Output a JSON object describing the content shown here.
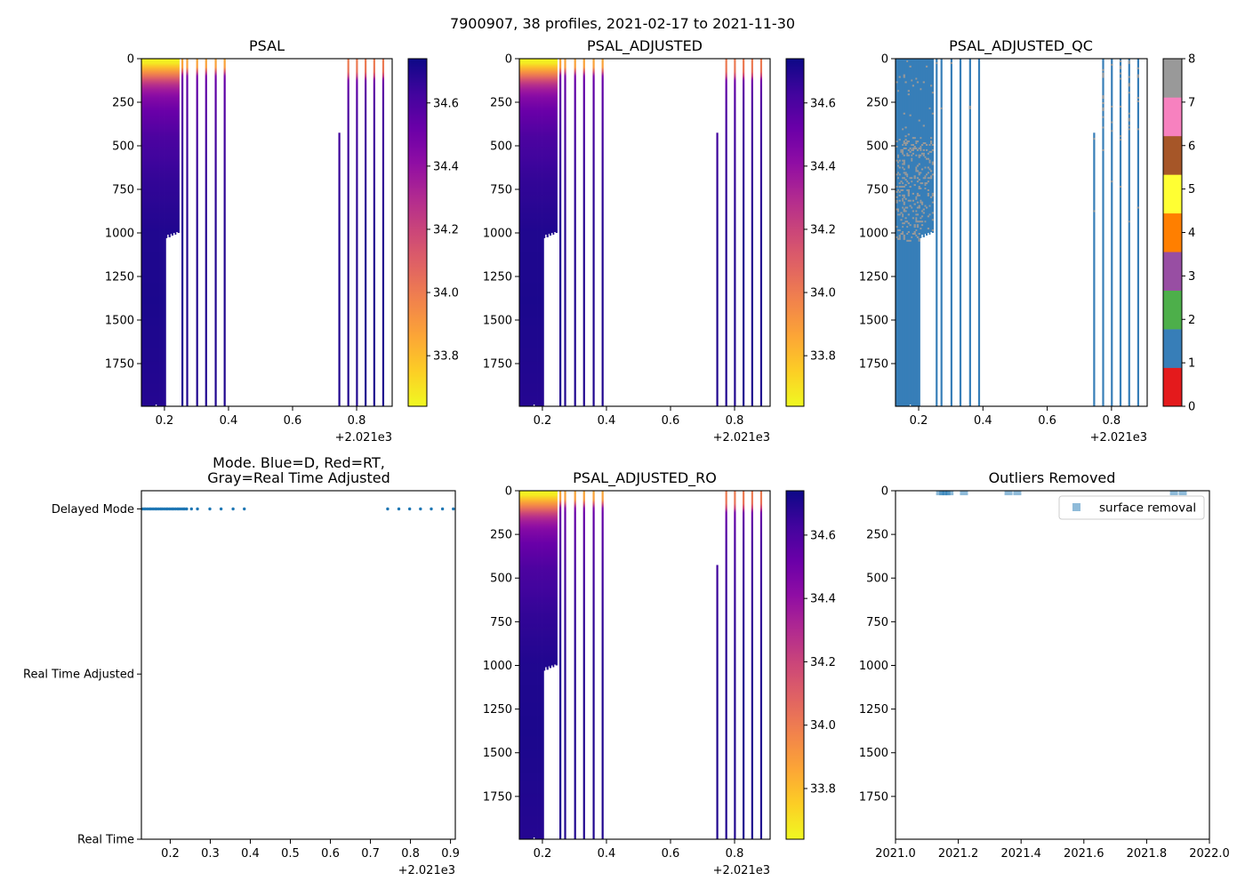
{
  "figure": {
    "suptitle": "7900907, 38 profiles, 2021-02-17 to 2021-11-30"
  },
  "profiles": {
    "float_id": "7900907",
    "count": 38,
    "time_offset": 2021,
    "pressure_levels": [
      0,
      30,
      60,
      90,
      120,
      160,
      220,
      300,
      450,
      700,
      1000,
      1400,
      2000
    ],
    "groups": {
      "early": {
        "psal": [
          33.65,
          33.68,
          33.85,
          33.98,
          34.15,
          34.32,
          34.44,
          34.52,
          34.6,
          34.66,
          34.7,
          34.71,
          34.69
        ]
      },
      "middle": {
        "psal": [
          33.86,
          33.87,
          33.9,
          34.42,
          34.52,
          34.54,
          34.56,
          34.58,
          34.62,
          34.66,
          34.69,
          34.7,
          34.7
        ]
      },
      "late": {
        "psal": [
          34.0,
          34.0,
          34.02,
          34.08,
          34.48,
          34.54,
          34.57,
          34.6,
          34.63,
          34.66,
          34.69,
          34.7,
          34.7
        ]
      }
    },
    "qc": {
      "default_flag": 1,
      "sparse_flag": 8,
      "sparse_regions": [
        {
          "group": "early",
          "pmin": 0,
          "pmax": 450,
          "fraction": 0.03
        },
        {
          "group": "early",
          "pmin": 450,
          "pmax": 1050,
          "fraction": 0.2
        },
        {
          "group": "middle",
          "pmin": 0,
          "pmax": 300,
          "fraction": 0.04
        },
        {
          "group": "late",
          "pmin": 0,
          "pmax": 470,
          "fraction": 0.15
        },
        {
          "group": "late",
          "pmin": 470,
          "pmax": 1000,
          "fraction": 0.02
        }
      ]
    },
    "list": [
      {
        "t": 0.129,
        "g": "early",
        "pmin": 0,
        "pmax": 1995,
        "mode": "D"
      },
      {
        "t": 0.134,
        "g": "early",
        "pmin": 0,
        "pmax": 1995,
        "mode": "D"
      },
      {
        "t": 0.138,
        "g": "early",
        "pmin": 0,
        "pmax": 1995,
        "mode": "D"
      },
      {
        "t": 0.143,
        "g": "early",
        "pmin": 0,
        "pmax": 1995,
        "mode": "D"
      },
      {
        "t": 0.148,
        "g": "early",
        "pmin": 0,
        "pmax": 1995,
        "mode": "D"
      },
      {
        "t": 0.152,
        "g": "early",
        "pmin": 0,
        "pmax": 1995,
        "mode": "D"
      },
      {
        "t": 0.157,
        "g": "early",
        "pmin": 0,
        "pmax": 1995,
        "mode": "D"
      },
      {
        "t": 0.162,
        "g": "early",
        "pmin": 0,
        "pmax": 1995,
        "mode": "D"
      },
      {
        "t": 0.166,
        "g": "early",
        "pmin": 0,
        "pmax": 1995,
        "mode": "D"
      },
      {
        "t": 0.171,
        "g": "early",
        "pmin": 0,
        "pmax": 1985,
        "mode": "D"
      },
      {
        "t": 0.176,
        "g": "early",
        "pmin": 0,
        "pmax": 1995,
        "mode": "D"
      },
      {
        "t": 0.18,
        "g": "early",
        "pmin": 0,
        "pmax": 1995,
        "mode": "D"
      },
      {
        "t": 0.185,
        "g": "early",
        "pmin": 0,
        "pmax": 1995,
        "mode": "D"
      },
      {
        "t": 0.19,
        "g": "early",
        "pmin": 0,
        "pmax": 1995,
        "mode": "D"
      },
      {
        "t": 0.194,
        "g": "early",
        "pmin": 0,
        "pmax": 1995,
        "mode": "D"
      },
      {
        "t": 0.199,
        "g": "early",
        "pmin": 0,
        "pmax": 1995,
        "mode": "D"
      },
      {
        "t": 0.204,
        "g": "early",
        "pmin": 0,
        "pmax": 1030,
        "mode": "D"
      },
      {
        "t": 0.208,
        "g": "early",
        "pmin": 0,
        "pmax": 1010,
        "mode": "D"
      },
      {
        "t": 0.213,
        "g": "early",
        "pmin": 0,
        "pmax": 1025,
        "mode": "D"
      },
      {
        "t": 0.218,
        "g": "early",
        "pmin": 0,
        "pmax": 1005,
        "mode": "D"
      },
      {
        "t": 0.222,
        "g": "early",
        "pmin": 0,
        "pmax": 1015,
        "mode": "D"
      },
      {
        "t": 0.227,
        "g": "early",
        "pmin": 0,
        "pmax": 1000,
        "mode": "D"
      },
      {
        "t": 0.232,
        "g": "early",
        "pmin": 0,
        "pmax": 1010,
        "mode": "D"
      },
      {
        "t": 0.236,
        "g": "early",
        "pmin": 0,
        "pmax": 995,
        "mode": "D"
      },
      {
        "t": 0.241,
        "g": "early",
        "pmin": 0,
        "pmax": 1000,
        "mode": "D"
      },
      {
        "t": 0.253,
        "g": "middle",
        "pmin": 0,
        "pmax": 1995,
        "mode": "D"
      },
      {
        "t": 0.268,
        "g": "middle",
        "pmin": 0,
        "pmax": 1995,
        "mode": "D"
      },
      {
        "t": 0.299,
        "g": "middle",
        "pmin": 0,
        "pmax": 1995,
        "mode": "D"
      },
      {
        "t": 0.327,
        "g": "middle",
        "pmin": 0,
        "pmax": 1995,
        "mode": "D"
      },
      {
        "t": 0.357,
        "g": "middle",
        "pmin": 0,
        "pmax": 1995,
        "mode": "D"
      },
      {
        "t": 0.385,
        "g": "middle",
        "pmin": 0,
        "pmax": 1995,
        "mode": "D"
      },
      {
        "t": 0.743,
        "g": "late",
        "pmin": 425,
        "pmax": 1995,
        "mode": "D"
      },
      {
        "t": 0.771,
        "g": "late",
        "pmin": 0,
        "pmax": 1995,
        "mode": "D"
      },
      {
        "t": 0.798,
        "g": "late",
        "pmin": 0,
        "pmax": 1995,
        "mode": "D"
      },
      {
        "t": 0.825,
        "g": "late",
        "pmin": 0,
        "pmax": 1995,
        "mode": "D"
      },
      {
        "t": 0.852,
        "g": "late",
        "pmin": 0,
        "pmax": 1995,
        "mode": "D"
      },
      {
        "t": 0.88,
        "g": "late",
        "pmin": 0,
        "pmax": 1995,
        "mode": "D"
      },
      {
        "t": 0.907,
        "g": "late",
        "pmin": null,
        "pmax": null,
        "mode": "D"
      }
    ]
  },
  "chart_data": [
    {
      "id": "psal",
      "type": "heatmap",
      "title": "PSAL",
      "variable": "PSAL",
      "colormap": "plasma_r",
      "source": "profiles",
      "xlim": [
        0.128,
        0.911
      ],
      "xticks": [
        0.2,
        0.4,
        0.6,
        0.8
      ],
      "xtick_labels": [
        "0.2",
        "0.4",
        "0.6",
        "0.8"
      ],
      "x_offset_label": "+2.021e3",
      "ylim": [
        1995,
        0
      ],
      "yticks": [
        0,
        250,
        500,
        750,
        1000,
        1250,
        1500,
        1750
      ],
      "ytick_labels": [
        "0",
        "250",
        "500",
        "750",
        "1000",
        "1250",
        "1500",
        "1750"
      ],
      "colorbar": {
        "vmin": 33.64,
        "vmax": 34.74,
        "ticks": [
          33.8,
          34.0,
          34.2,
          34.4,
          34.6
        ],
        "tick_labels": [
          "33.8",
          "34.0",
          "34.2",
          "34.4",
          "34.6"
        ]
      }
    },
    {
      "id": "psal_adjusted",
      "type": "heatmap",
      "title": "PSAL_ADJUSTED",
      "variable": "PSAL_ADJUSTED",
      "colormap": "plasma_r",
      "source": "profiles",
      "xlim": [
        0.128,
        0.911
      ],
      "xticks": [
        0.2,
        0.4,
        0.6,
        0.8
      ],
      "xtick_labels": [
        "0.2",
        "0.4",
        "0.6",
        "0.8"
      ],
      "x_offset_label": "+2.021e3",
      "ylim": [
        1995,
        0
      ],
      "yticks": [
        0,
        250,
        500,
        750,
        1000,
        1250,
        1500,
        1750
      ],
      "ytick_labels": [
        "0",
        "250",
        "500",
        "750",
        "1000",
        "1250",
        "1500",
        "1750"
      ],
      "colorbar": {
        "vmin": 33.64,
        "vmax": 34.74,
        "ticks": [
          33.8,
          34.0,
          34.2,
          34.4,
          34.6
        ],
        "tick_labels": [
          "33.8",
          "34.0",
          "34.2",
          "34.4",
          "34.6"
        ]
      }
    },
    {
      "id": "psal_adjusted_qc",
      "type": "heatmap",
      "title": "PSAL_ADJUSTED_QC",
      "variable": "PSAL_ADJUSTED_QC",
      "colormap": "Set1",
      "source": "profiles",
      "xlim": [
        0.128,
        0.911
      ],
      "xticks": [
        0.2,
        0.4,
        0.6,
        0.8
      ],
      "xtick_labels": [
        "0.2",
        "0.4",
        "0.6",
        "0.8"
      ],
      "x_offset_label": "+2.021e3",
      "ylim": [
        1995,
        0
      ],
      "yticks": [
        0,
        250,
        500,
        750,
        1000,
        1250,
        1500,
        1750
      ],
      "ytick_labels": [
        "0",
        "250",
        "500",
        "750",
        "1000",
        "1250",
        "1500",
        "1750"
      ],
      "colorbar": {
        "vmin": 0,
        "vmax": 8,
        "ticks": [
          0,
          1,
          2,
          3,
          4,
          5,
          6,
          7,
          8
        ],
        "tick_labels": [
          "0",
          "1",
          "2",
          "3",
          "4",
          "5",
          "6",
          "7",
          "8"
        ],
        "colors": [
          "#e41a1c",
          "#377eb8",
          "#4daf4a",
          "#984ea3",
          "#ff7f00",
          "#ffff33",
          "#a65628",
          "#f781bf",
          "#999999"
        ]
      }
    },
    {
      "id": "mode",
      "type": "scatter",
      "title_lines": [
        "Mode. Blue=D, Red=RT,",
        "Gray=Real Time Adjusted"
      ],
      "source": "profiles",
      "marker_color": "#1f77b4",
      "mode_codes": {
        "R": 0,
        "A": 1,
        "D": 2
      },
      "xlim": [
        0.128,
        0.912
      ],
      "xticks": [
        0.2,
        0.3,
        0.4,
        0.5,
        0.6,
        0.7,
        0.8,
        0.9
      ],
      "xtick_labels": [
        "0.2",
        "0.3",
        "0.4",
        "0.5",
        "0.6",
        "0.7",
        "0.8",
        "0.9"
      ],
      "x_offset_label": "+2.021e3",
      "ylim": [
        0,
        2.11
      ],
      "yticks": [
        0,
        1,
        2
      ],
      "ytick_labels": [
        "Real Time",
        "Real Time Adjusted",
        "Delayed Mode"
      ]
    },
    {
      "id": "psal_adjusted_ro",
      "type": "heatmap",
      "title": "PSAL_ADJUSTED_RO",
      "variable": "PSAL_ADJUSTED_RO",
      "colormap": "plasma_r",
      "source": "profiles",
      "xlim": [
        0.128,
        0.911
      ],
      "xticks": [
        0.2,
        0.4,
        0.6,
        0.8
      ],
      "xtick_labels": [
        "0.2",
        "0.4",
        "0.6",
        "0.8"
      ],
      "x_offset_label": "+2.021e3",
      "ylim": [
        1995,
        0
      ],
      "yticks": [
        0,
        250,
        500,
        750,
        1000,
        1250,
        1500,
        1750
      ],
      "ytick_labels": [
        "0",
        "250",
        "500",
        "750",
        "1000",
        "1250",
        "1500",
        "1750"
      ],
      "colorbar": {
        "vmin": 33.64,
        "vmax": 34.74,
        "ticks": [
          33.8,
          34.0,
          34.2,
          34.4,
          34.6
        ],
        "tick_labels": [
          "33.8",
          "34.0",
          "34.2",
          "34.4",
          "34.6"
        ]
      }
    },
    {
      "id": "outliers",
      "type": "scatter",
      "title": "Outliers Removed",
      "marker": "square",
      "marker_color": "#1f77b4",
      "marker_alpha": 0.5,
      "xlim": [
        2021.0,
        2022.0
      ],
      "xticks": [
        2021.0,
        2021.2,
        2021.4,
        2021.6,
        2021.8,
        2022.0
      ],
      "xtick_labels": [
        "2021.0",
        "2021.2",
        "2021.4",
        "2021.6",
        "2021.8",
        "2022.0"
      ],
      "ylim": [
        1995,
        0
      ],
      "yticks": [
        0,
        250,
        500,
        750,
        1000,
        1250,
        1500,
        1750
      ],
      "ytick_labels": [
        "0",
        "250",
        "500",
        "750",
        "1000",
        "1250",
        "1500",
        "1750"
      ],
      "legend": {
        "label": "surface removal",
        "location": "upper right"
      },
      "points": [
        {
          "x": 2021.142,
          "y": 3
        },
        {
          "x": 2021.152,
          "y": 3
        },
        {
          "x": 2021.162,
          "y": 3
        },
        {
          "x": 2021.172,
          "y": 3
        },
        {
          "x": 2021.218,
          "y": 3
        },
        {
          "x": 2021.36,
          "y": 3
        },
        {
          "x": 2021.388,
          "y": 3
        },
        {
          "x": 2021.887,
          "y": 3
        },
        {
          "x": 2021.915,
          "y": 3
        }
      ]
    }
  ]
}
